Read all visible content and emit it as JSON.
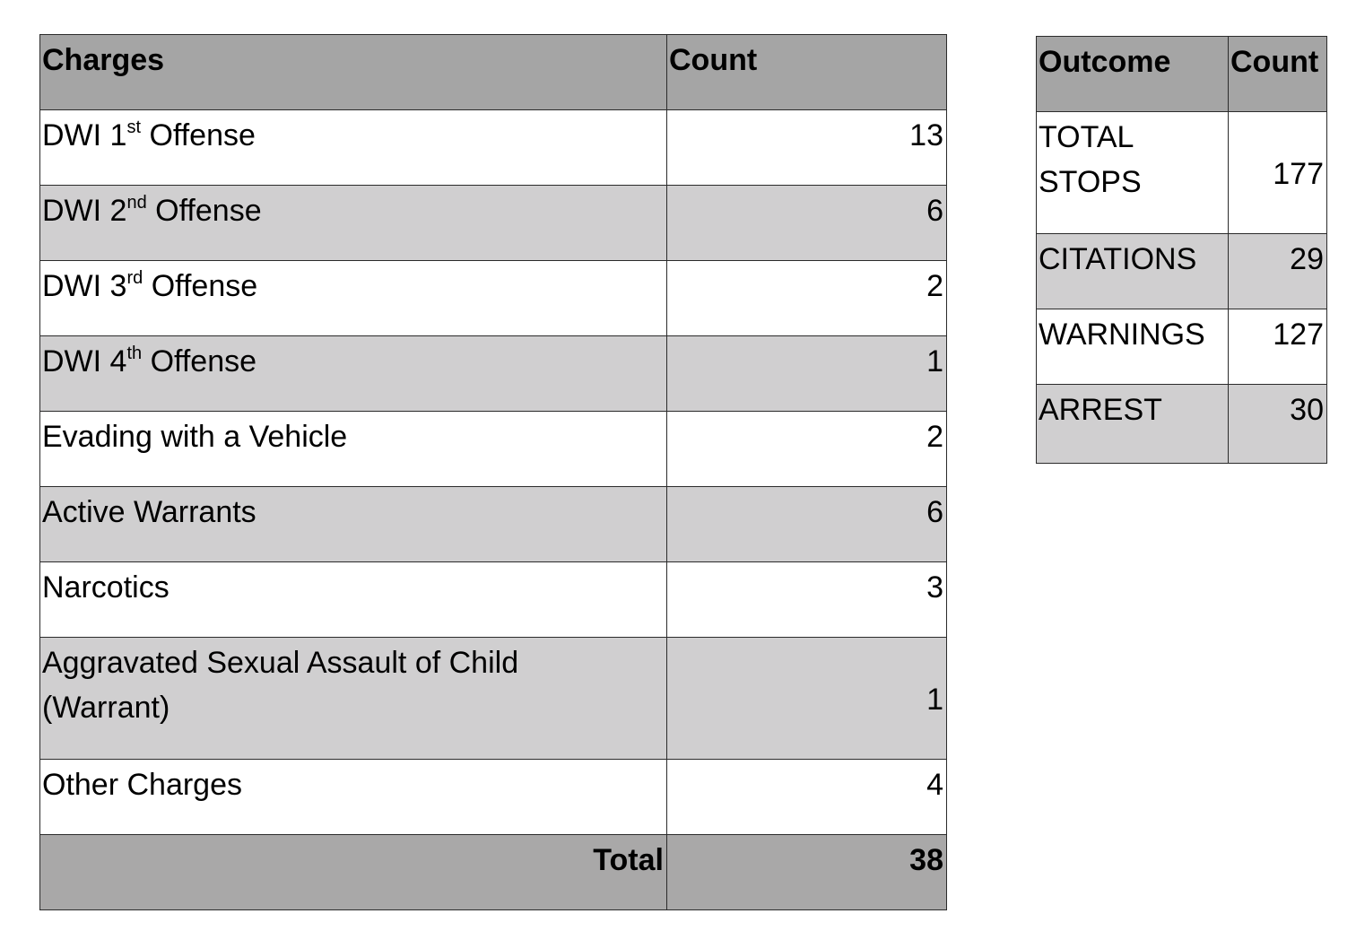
{
  "charges_table": {
    "headers": [
      "Charges",
      "Count"
    ],
    "rows": [
      {
        "label": "DWI 1",
        "sup": "st",
        "suffix": " Offense",
        "count": "13"
      },
      {
        "label": "DWI 2",
        "sup": "nd",
        "suffix": " Offense",
        "count": "6"
      },
      {
        "label": "DWI 3",
        "sup": "rd",
        "suffix": " Offense",
        "count": "2"
      },
      {
        "label": "DWI 4",
        "sup": "th",
        "suffix": " Offense",
        "count": "1"
      },
      {
        "label": "Evading with a Vehicle",
        "count": "2"
      },
      {
        "label": "Active Warrants",
        "count": "6"
      },
      {
        "label": "Narcotics",
        "count": "3"
      },
      {
        "label": "Aggravated Sexual Assault of Child",
        "label_line2": "(Warrant)",
        "count": "1"
      },
      {
        "label": "Other Charges",
        "count": "4"
      }
    ],
    "total_label": "Total",
    "total_count": "38"
  },
  "outcome_table": {
    "headers": [
      "Outcome",
      "Count"
    ],
    "rows": [
      {
        "label": "TOTAL",
        "label_line2": "STOPS",
        "count": "177"
      },
      {
        "label": "CITATIONS",
        "count": "29"
      },
      {
        "label": "WARNINGS",
        "count": "127"
      },
      {
        "label": "ARREST",
        "count": "30"
      }
    ]
  }
}
